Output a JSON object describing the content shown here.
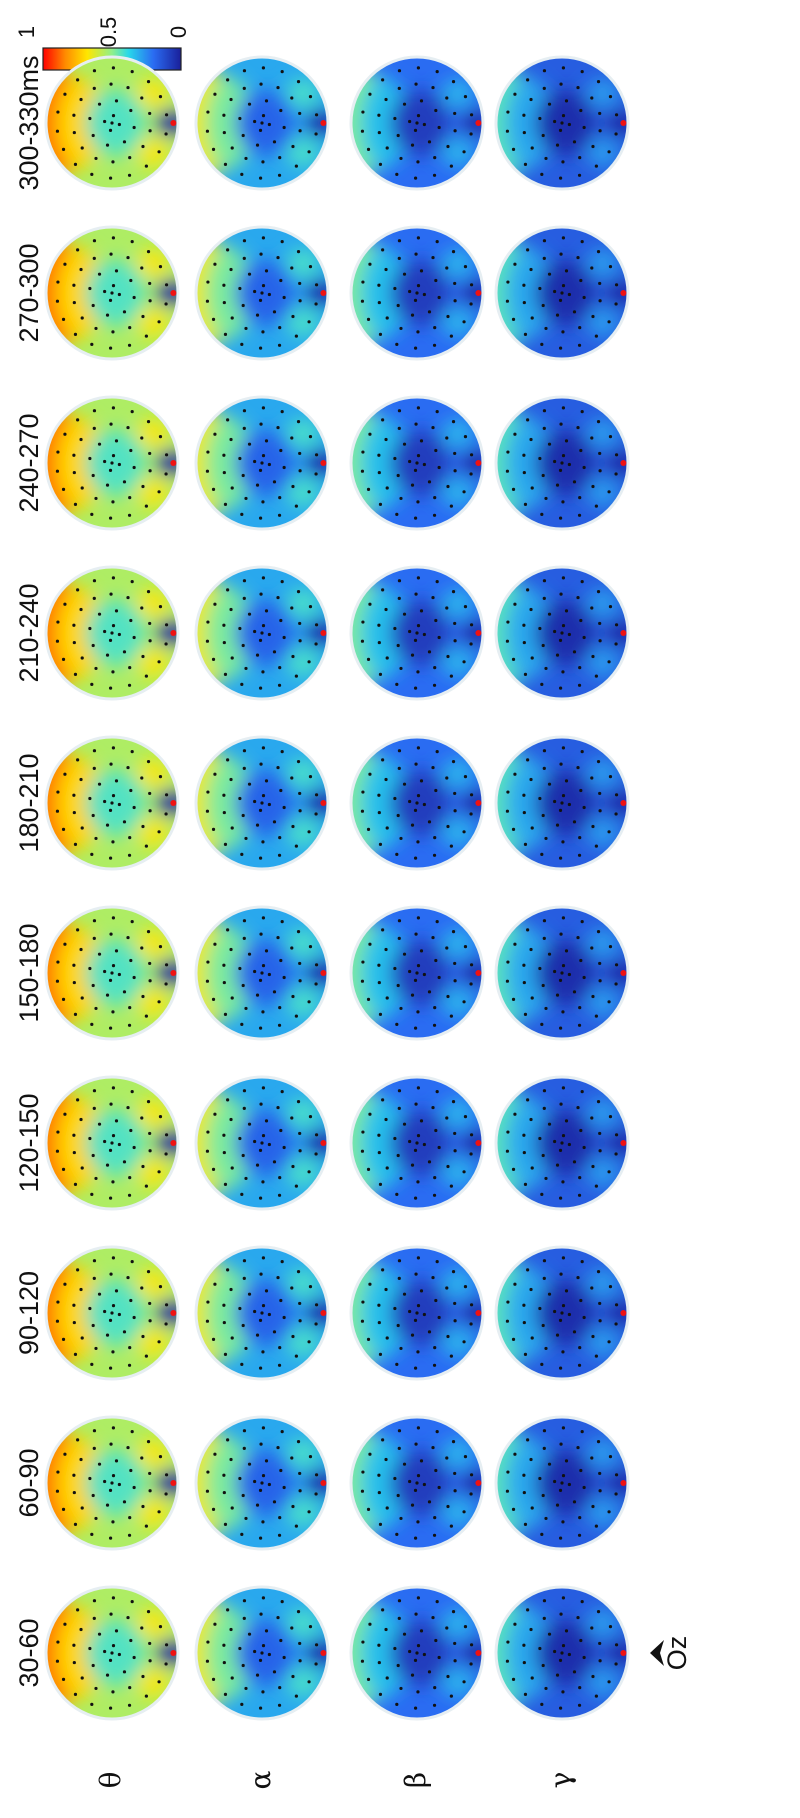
{
  "figure": {
    "time_windows": [
      "30-60",
      "60-90",
      "90-120",
      "120-150",
      "150-180",
      "180-210",
      "210-240",
      "240-270",
      "270-300",
      "300-330ms"
    ],
    "bands": [
      {
        "symbol": "θ",
        "name": "theta",
        "level": 0.55
      },
      {
        "symbol": "α",
        "name": "alpha",
        "level": 0.3
      },
      {
        "symbol": "β",
        "name": "beta",
        "level": 0.2
      },
      {
        "symbol": "γ",
        "name": "gamma",
        "level": 0.16
      }
    ],
    "colorbar": {
      "max_label": "1",
      "mid_label": "0.5",
      "min_label": "0",
      "colormap": "jet"
    },
    "electrode_marker": {
      "label": "Oz"
    },
    "colors": {
      "background": "#ffffff",
      "electrode": "#111111",
      "peak": "#e11",
      "text": "#111111"
    }
  }
}
